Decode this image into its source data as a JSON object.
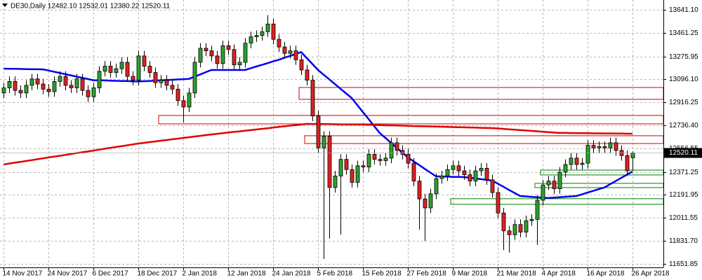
{
  "chart_data": {
    "type": "candlestick",
    "title": "DE30,Daily 12482.10 12532.01 12380.22 12520.11",
    "categories": [
      "14 Nov 2017",
      null,
      null,
      null,
      null,
      null,
      null,
      null,
      "24 Nov 2017",
      null,
      null,
      null,
      null,
      null,
      null,
      null,
      "6 Dec 2017",
      null,
      null,
      null,
      null,
      null,
      null,
      null,
      "18 Dec 2017",
      null,
      null,
      null,
      null,
      null,
      null,
      null,
      "2 Jan 2018",
      null,
      null,
      null,
      null,
      null,
      null,
      null,
      "12 Jan 2018",
      null,
      null,
      null,
      null,
      null,
      null,
      null,
      "24 Jan 2018",
      null,
      null,
      null,
      null,
      null,
      null,
      null,
      "5 Feb 2018",
      null,
      null,
      null,
      null,
      null,
      null,
      null,
      "15 Feb 2018",
      null,
      null,
      null,
      null,
      null,
      null,
      null,
      "27 Feb 2018",
      null,
      null,
      null,
      null,
      null,
      null,
      null,
      "9 Mar 2018",
      null,
      null,
      null,
      null,
      null,
      null,
      null,
      "21 Mar 2018",
      null,
      null,
      null,
      null,
      null,
      null,
      null,
      "4 Apr 2018",
      null,
      null,
      null,
      null,
      null,
      null,
      null,
      "16 Apr 2018",
      null,
      null,
      null,
      null,
      null,
      null,
      null,
      "26 Apr 2018"
    ],
    "open": [
      12990,
      13030,
      13080,
      13010,
      12990,
      13050,
      13100,
      13060,
      13020,
      13000,
      13080,
      13120,
      13050,
      13030,
      13100,
      13010,
      12960,
      13030,
      13160,
      13200,
      13150,
      13180,
      13230,
      13120,
      13090,
      13280,
      13200,
      13150,
      13070,
      13090,
      13050,
      13020,
      12930,
      12880,
      12990,
      13230,
      13340,
      13320,
      13280,
      13220,
      13360,
      13330,
      13210,
      13230,
      13380,
      13430,
      13440,
      13470,
      13530,
      13410,
      13350,
      13300,
      13320,
      13250,
      13170,
      13090,
      12810,
      12560,
      12650,
      12250,
      12340,
      12470,
      12390,
      12290,
      12420,
      12410,
      12510,
      12470,
      12460,
      12480,
      12600,
      12540,
      12510,
      12440,
      12300,
      12160,
      12090,
      12200,
      12320,
      12340,
      12390,
      12420,
      12380,
      12350,
      12300,
      12380,
      12400,
      12310,
      12210,
      12050,
      11910,
      11880,
      11960,
      11900,
      11990,
      12000,
      12150,
      12270,
      12300,
      12240,
      12370,
      12430,
      12480,
      12430,
      12440,
      12580,
      12560,
      12570,
      12560,
      12600,
      12540,
      12500,
      12482.1
    ],
    "high": [
      13070,
      13120,
      13120,
      13050,
      13090,
      13140,
      13140,
      13100,
      13060,
      13120,
      13160,
      13160,
      13090,
      13140,
      13140,
      13050,
      13070,
      13200,
      13240,
      13240,
      13220,
      13270,
      13270,
      13160,
      13320,
      13320,
      13240,
      13190,
      13130,
      13130,
      13090,
      13060,
      12970,
      13030,
      13270,
      13380,
      13380,
      13360,
      13320,
      13400,
      13400,
      13370,
      13270,
      13420,
      13470,
      13480,
      13510,
      13600,
      13570,
      13450,
      13390,
      13360,
      13360,
      13290,
      13210,
      13130,
      12850,
      12690,
      12690,
      12380,
      12510,
      12510,
      12430,
      12460,
      12460,
      12550,
      12550,
      12510,
      12520,
      12640,
      12640,
      12580,
      12550,
      12480,
      12340,
      12200,
      12240,
      12360,
      12380,
      12430,
      12460,
      12460,
      12420,
      12390,
      12420,
      12440,
      12440,
      12350,
      12250,
      12090,
      11950,
      12000,
      12000,
      12030,
      12040,
      12190,
      12310,
      12340,
      12340,
      12410,
      12470,
      12520,
      12520,
      12480,
      12620,
      12620,
      12610,
      12610,
      12640,
      12640,
      12580,
      12540,
      12532.01
    ],
    "low": [
      12950,
      12990,
      12970,
      12950,
      12950,
      13010,
      13020,
      12980,
      12960,
      12960,
      13040,
      13010,
      12990,
      12990,
      12970,
      12920,
      12920,
      12990,
      13120,
      13110,
      13110,
      13140,
      13080,
      13050,
      13050,
      13160,
      13110,
      13030,
      13030,
      13010,
      12980,
      12890,
      12760,
      12840,
      12950,
      13190,
      13280,
      13240,
      13180,
      13180,
      13290,
      13170,
      13170,
      13190,
      13340,
      13390,
      13400,
      13430,
      13370,
      13310,
      13260,
      13260,
      13210,
      13130,
      13050,
      12770,
      12520,
      11690,
      11850,
      12210,
      11880,
      12350,
      12250,
      12250,
      12370,
      12370,
      12430,
      12420,
      12420,
      12440,
      12500,
      12470,
      12400,
      12260,
      11920,
      11830,
      12050,
      12160,
      12280,
      12300,
      12350,
      12340,
      12310,
      12260,
      12260,
      12340,
      12270,
      12170,
      12010,
      11760,
      11740,
      11840,
      11860,
      11860,
      11950,
      11800,
      12110,
      12230,
      12200,
      12200,
      12330,
      12390,
      12390,
      12390,
      12400,
      12520,
      12520,
      12520,
      12520,
      12500,
      12460,
      12340,
      12380.22
    ],
    "close": [
      13030,
      13080,
      13010,
      12990,
      13050,
      13100,
      13060,
      13020,
      13000,
      13080,
      13120,
      13050,
      13030,
      13100,
      13010,
      12960,
      13030,
      13160,
      13200,
      13150,
      13180,
      13230,
      13120,
      13090,
      13280,
      13200,
      13150,
      13070,
      13090,
      13050,
      13020,
      12930,
      12880,
      12990,
      13230,
      13340,
      13320,
      13280,
      13220,
      13360,
      13330,
      13210,
      13230,
      13380,
      13430,
      13440,
      13470,
      13530,
      13410,
      13350,
      13300,
      13320,
      13250,
      13170,
      13090,
      12810,
      12560,
      12650,
      12250,
      12340,
      12470,
      12390,
      12290,
      12420,
      12410,
      12510,
      12470,
      12460,
      12480,
      12600,
      12540,
      12510,
      12440,
      12300,
      12160,
      12090,
      12200,
      12320,
      12340,
      12390,
      12420,
      12380,
      12350,
      12300,
      12380,
      12400,
      12310,
      12210,
      12050,
      11910,
      11880,
      11960,
      11900,
      11990,
      12000,
      12150,
      12270,
      12300,
      12240,
      12370,
      12430,
      12480,
      12430,
      12440,
      12580,
      12560,
      12570,
      12560,
      12600,
      12540,
      12500,
      12380,
      12520.11
    ],
    "up_color": "#2ca02c",
    "down_color": "#e02020",
    "overlays": [
      {
        "color": "#0000ee",
        "values": [
          13180,
          13179,
          13179,
          13178,
          13177,
          13176,
          13176,
          13175,
          13166,
          13156,
          13147,
          13137,
          13128,
          13118,
          13109,
          13099,
          13090,
          13089,
          13088,
          13086,
          13085,
          13084,
          13083,
          13081,
          13080,
          13082,
          13084,
          13087,
          13089,
          13091,
          13093,
          13096,
          13098,
          13100,
          13118,
          13135,
          13153,
          13170,
          13170,
          13170,
          13170,
          13170,
          13170,
          13170,
          13183,
          13197,
          13210,
          13223,
          13237,
          13250,
          13265,
          13280,
          13295,
          13310,
          13263,
          13217,
          13170,
          13133,
          13097,
          13060,
          13023,
          12987,
          12950,
          12895,
          12840,
          12786,
          12731,
          12676,
          12638,
          12600,
          12561,
          12523,
          12485,
          12455,
          12426,
          12396,
          12367,
          12337,
          12336,
          12335,
          12333,
          12332,
          12331,
          12326,
          12320,
          12315,
          12309,
          12304,
          12280,
          12256,
          12231,
          12207,
          12183,
          12180,
          12176,
          12173,
          12170,
          12167,
          12170,
          12173,
          12177,
          12180,
          12183,
          12196,
          12210,
          12223,
          12237,
          12250,
          12275,
          12300,
          12325,
          12350,
          12375
        ]
      },
      {
        "color": "#e00000",
        "values": [
          12430,
          12437,
          12444,
          12450,
          12457,
          12464,
          12471,
          12478,
          12485,
          12491,
          12498,
          12505,
          12512,
          12519,
          12526,
          12532,
          12539,
          12546,
          12553,
          12560,
          12567,
          12573,
          12580,
          12587,
          12594,
          12599,
          12605,
          12610,
          12616,
          12621,
          12627,
          12632,
          12638,
          12643,
          12649,
          12654,
          12660,
          12665,
          12670,
          12675,
          12680,
          12685,
          12689,
          12694,
          12699,
          12704,
          12709,
          12714,
          12719,
          12724,
          12729,
          12734,
          12738,
          12743,
          12748,
          12747,
          12747,
          12746,
          12746,
          12745,
          12744,
          12744,
          12743,
          12743,
          12742,
          12741,
          12740,
          12738,
          12737,
          12736,
          12735,
          12734,
          12733,
          12731,
          12730,
          12729,
          12728,
          12727,
          12726,
          12724,
          12723,
          12722,
          12721,
          12720,
          12719,
          12717,
          12716,
          12715,
          12712,
          12709,
          12705,
          12702,
          12699,
          12696,
          12693,
          12690,
          12686,
          12683,
          12680,
          12677,
          12677,
          12676,
          12676,
          12675,
          12675,
          12674,
          12674,
          12673,
          12673,
          12672,
          12672,
          12671,
          12671
        ]
      }
    ],
    "zones": [
      {
        "color": "#d00000",
        "start": 53,
        "low": 12940,
        "high": 13033
      },
      {
        "color": "#d00000",
        "start": 28,
        "low": 12748,
        "high": 12814
      },
      {
        "color": "#d00000",
        "start": 54,
        "low": 12594,
        "high": 12655
      },
      {
        "color": "#008000",
        "start": 96,
        "low": 12348,
        "high": 12386
      },
      {
        "color": "#008000",
        "start": 95,
        "low": 12249,
        "high": 12282
      },
      {
        "color": "#008000",
        "start": 80,
        "low": 12118,
        "high": 12162
      }
    ],
    "last_price": {
      "value": 12520.11,
      "label": "12520.11"
    },
    "ylim": [
      11624,
      13718
    ],
    "yticks": [
      {
        "value": 13641.1,
        "label": "13641.10"
      },
      13461.25,
      13275.95,
      {
        "value": 13096.1,
        "label": "13096.10"
      },
      12916.25,
      {
        "value": 12736.4,
        "label": "12736.40"
      },
      12556.55,
      12371.25,
      12191.95,
      12011.55,
      {
        "value": 11831.7,
        "label": "11831.70"
      },
      11651.85
    ],
    "grid": true
  }
}
